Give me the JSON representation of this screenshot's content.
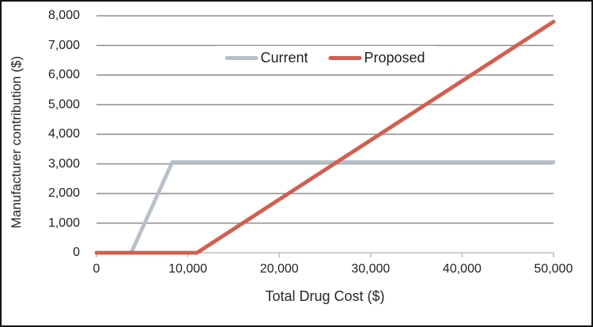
{
  "chart_data": {
    "type": "line",
    "title": "",
    "xlabel": "Total Drug Cost ($)",
    "ylabel": "Manufacturer contribution ($)",
    "xlim": [
      0,
      50000
    ],
    "ylim": [
      0,
      8000
    ],
    "x_ticks": [
      0,
      10000,
      20000,
      30000,
      40000,
      50000
    ],
    "x_tick_labels": [
      "0",
      "10,000",
      "20,000",
      "30,000",
      "40,000",
      "50,000"
    ],
    "y_ticks": [
      0,
      1000,
      2000,
      3000,
      4000,
      5000,
      6000,
      7000,
      8000
    ],
    "y_tick_labels": [
      "0",
      "1,000",
      "2,000",
      "3,000",
      "4,000",
      "5,000",
      "6,000",
      "7,000",
      "8,000"
    ],
    "grid": "horizontal",
    "legend_position": "top-center-inside",
    "series": [
      {
        "name": "Current",
        "color": "#b7c0c9",
        "points": [
          [
            0,
            0
          ],
          [
            3800,
            0
          ],
          [
            8300,
            3060
          ],
          [
            50000,
            3060
          ]
        ]
      },
      {
        "name": "Proposed",
        "color": "#d65c4c",
        "points": [
          [
            0,
            0
          ],
          [
            11000,
            0
          ],
          [
            50000,
            7800
          ]
        ]
      }
    ],
    "colors": {
      "gridline": "#8c8c8c",
      "axis_line": "#bfbfbf",
      "text": "#1f1f1f",
      "background": "#ffffff",
      "frame_border": "#161616"
    }
  }
}
